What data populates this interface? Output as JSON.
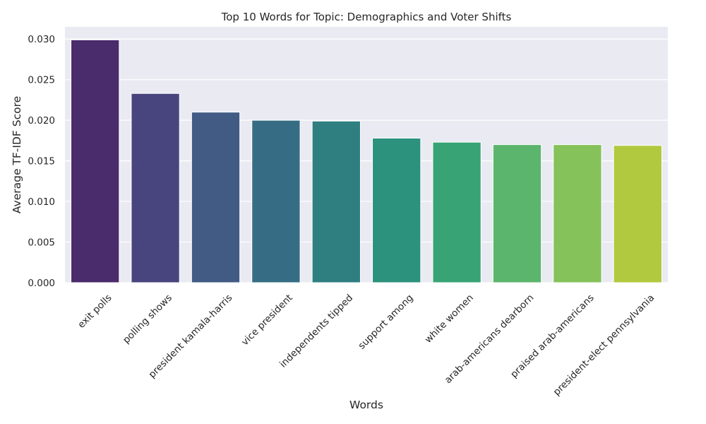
{
  "chart_data": {
    "type": "bar",
    "title": "Top 10 Words for Topic: Demographics and Voter Shifts",
    "xlabel": "Words",
    "ylabel": "Average TF-IDF Score",
    "ylim": [
      0,
      0.0315
    ],
    "yticks": [
      "0.000",
      "0.005",
      "0.010",
      "0.015",
      "0.020",
      "0.025",
      "0.030"
    ],
    "grid": true,
    "categories": [
      "exit polls",
      "polling shows",
      "president kamala-harris",
      "vice president",
      "independents tipped",
      "support among",
      "white women",
      "arab-americans dearborn",
      "praised arab-americans",
      "president-elect pennsylvania"
    ],
    "values": [
      0.0299,
      0.0233,
      0.021,
      0.02,
      0.0199,
      0.0178,
      0.0173,
      0.017,
      0.017,
      0.0169
    ],
    "colors": [
      "#4a2b6b",
      "#48457e",
      "#415b85",
      "#366d84",
      "#2f7f80",
      "#2c917d",
      "#38a476",
      "#5cb56c",
      "#85c25a",
      "#b0c93e"
    ],
    "plot_background": "#eaeaf2"
  }
}
